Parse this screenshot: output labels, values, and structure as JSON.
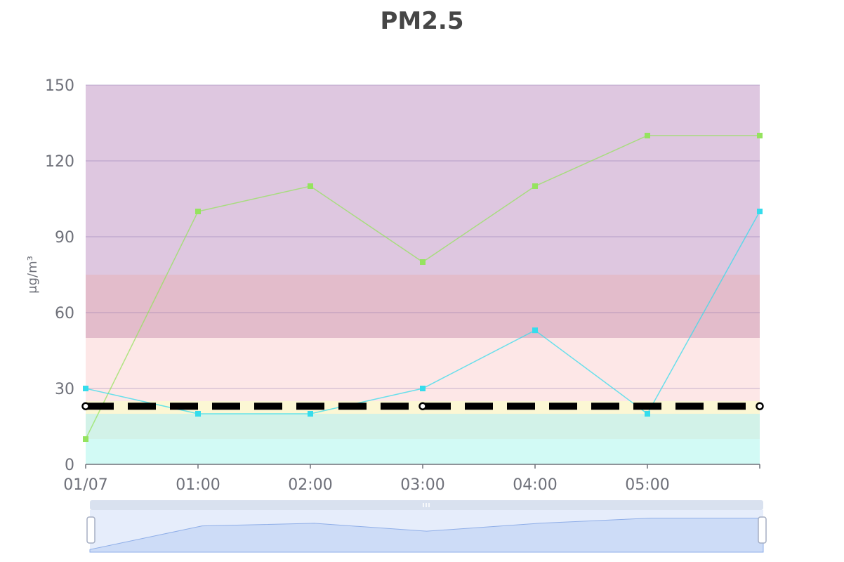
{
  "chart_data": {
    "type": "line",
    "title": "PM2.5",
    "ylabel": "μg/m³",
    "xlabel": "",
    "categories": [
      "01/07",
      "01:00",
      "02:00",
      "03:00",
      "04:00",
      "05:00",
      ""
    ],
    "ylim": [
      0,
      150
    ],
    "yticks": [
      0,
      30,
      60,
      90,
      120,
      150
    ],
    "series": [
      {
        "values": [
          10,
          100,
          110,
          80,
          110,
          130,
          130
        ],
        "color": "#95e35f"
      },
      {
        "values": [
          30,
          20,
          20,
          30,
          53,
          20,
          100
        ],
        "color": "#35dcec"
      }
    ],
    "bands": [
      {
        "from": 0,
        "to": 10,
        "color": "#d2faf5"
      },
      {
        "from": 10,
        "to": 20,
        "color": "#d2f2e8"
      },
      {
        "from": 20,
        "to": 25,
        "color": "#fcf7d4"
      },
      {
        "from": 25,
        "to": 50,
        "color": "#fde7e7"
      },
      {
        "from": 50,
        "to": 75,
        "color": "#e3bccb"
      },
      {
        "from": 75,
        "to": 150,
        "color": "#dec7e0"
      }
    ],
    "reference_line": {
      "value": 23,
      "color": "#000000"
    },
    "grid": true,
    "datazoom": {
      "start": 0,
      "end": 100
    }
  }
}
